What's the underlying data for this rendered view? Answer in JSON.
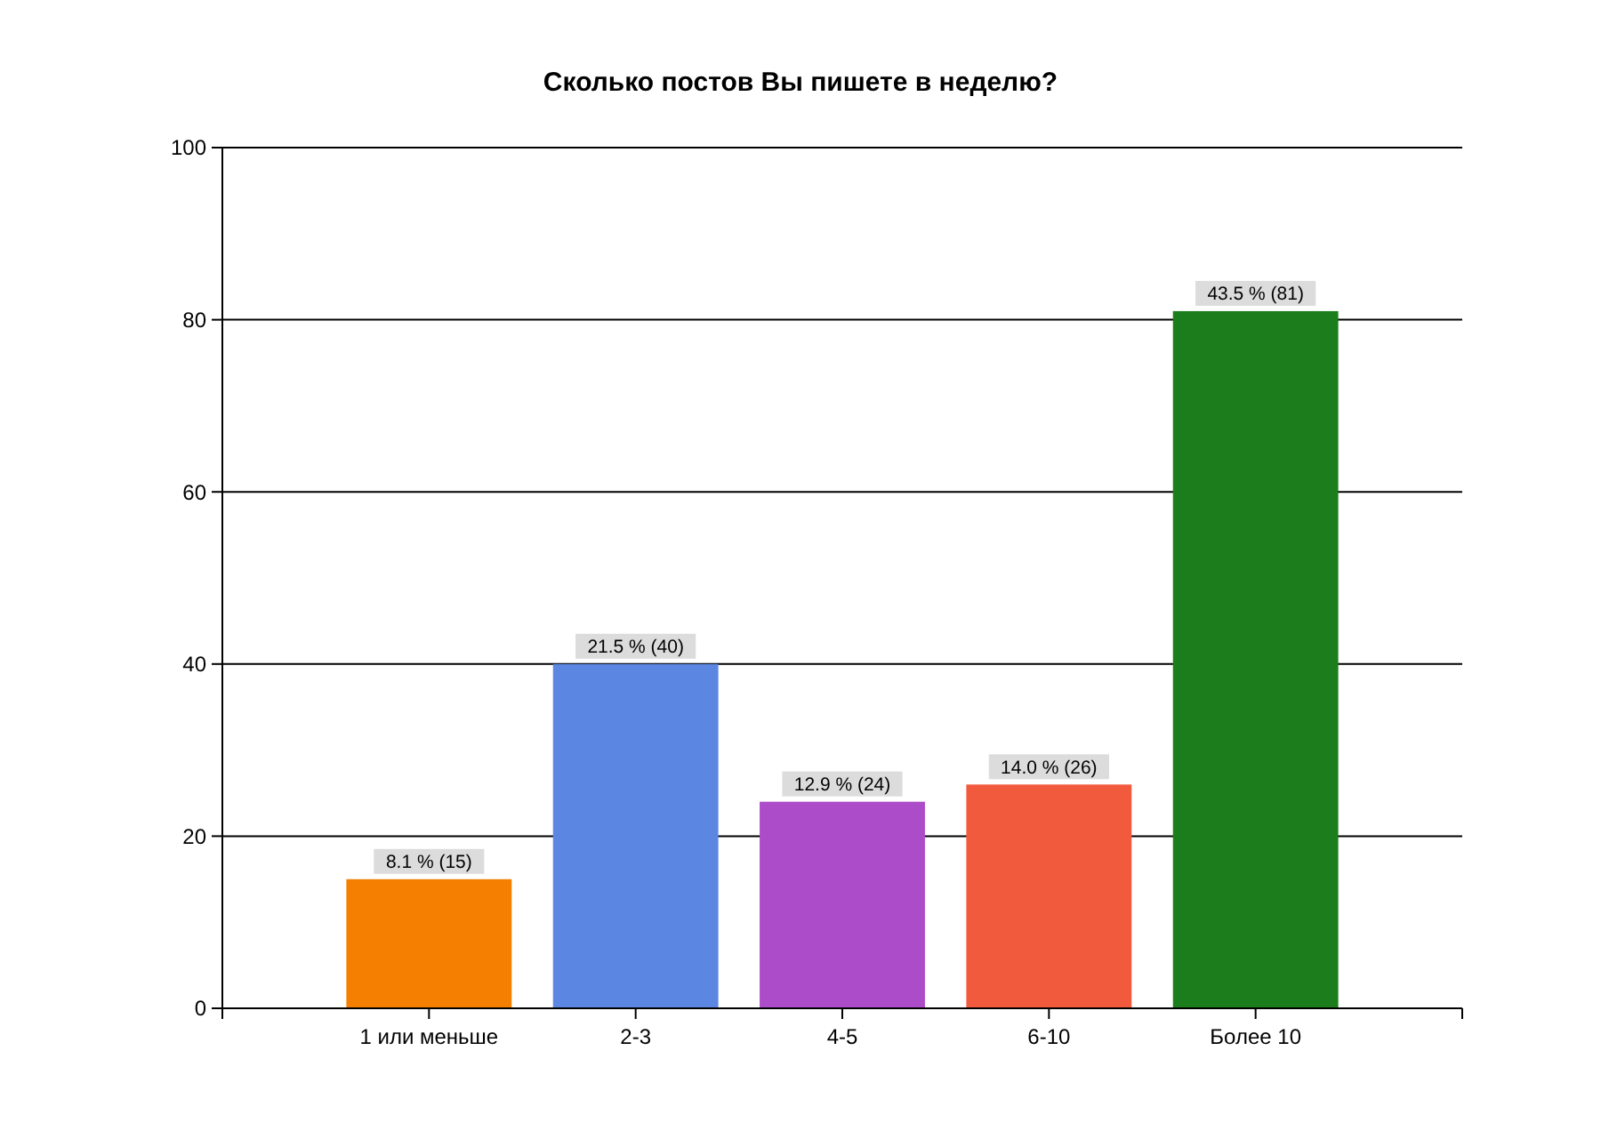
{
  "chart_data": {
    "type": "bar",
    "title": "Сколько постов Вы пишете в неделю?",
    "categories": [
      "1 или меньше",
      "2-3",
      "4-5",
      "6-10",
      "Более 10"
    ],
    "values": [
      15,
      40,
      24,
      26,
      81
    ],
    "colors": [
      "#f57f00",
      "#5b87e2",
      "#ad4cc8",
      "#f25a3d",
      "#1b7d1b"
    ],
    "value_labels": [
      "8.1 % (15)",
      "21.5 % (40)",
      "12.9 % (24)",
      "14.0 % (26)",
      "43.5 % (81)"
    ],
    "ylim": [
      0,
      100
    ],
    "yticks": [
      0,
      20,
      40,
      60,
      80,
      100
    ],
    "grid": "y"
  }
}
